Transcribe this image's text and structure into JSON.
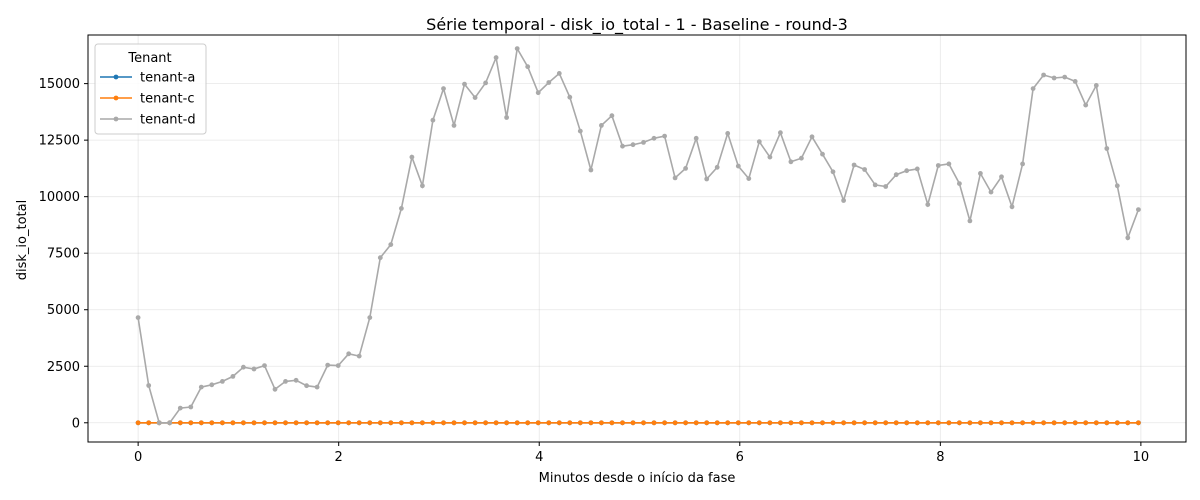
{
  "chart_data": {
    "type": "line",
    "title": "Série temporal - disk_io_total - 1 - Baseline - round-3",
    "xlabel": "Minutos desde o início da fase",
    "ylabel": "disk_io_total",
    "xlim": [
      -0.5,
      10.45
    ],
    "ylim": [
      -850,
      17150
    ],
    "xticks": [
      0,
      2,
      4,
      6,
      8,
      10
    ],
    "yticks": [
      0,
      2500,
      5000,
      7500,
      10000,
      12500,
      15000
    ],
    "grid": true,
    "legend": {
      "title": "Tenant",
      "position": "upper-left"
    },
    "x_step": 0.105,
    "series": [
      {
        "name": "tenant-a",
        "color": "#1f77b4",
        "values": [
          0,
          0,
          0,
          0,
          0,
          0,
          0,
          0,
          0,
          0,
          0,
          0,
          0,
          0,
          0,
          0,
          0,
          0,
          0,
          0,
          0,
          0,
          0,
          0,
          0,
          0,
          0,
          0,
          0,
          0,
          0,
          0,
          0,
          0,
          0,
          0,
          0,
          0,
          0,
          0,
          0,
          0,
          0,
          0,
          0,
          0,
          0,
          0,
          0,
          0,
          0,
          0,
          0,
          0,
          0,
          0,
          0,
          0,
          0,
          0,
          0,
          0,
          0,
          0,
          0,
          0,
          0,
          0,
          0,
          0,
          0,
          0,
          0,
          0,
          0,
          0,
          0,
          0,
          0,
          0,
          0,
          0,
          0,
          0,
          0,
          0,
          0,
          0,
          0,
          0,
          0,
          0,
          0,
          0,
          0,
          0
        ]
      },
      {
        "name": "tenant-c",
        "color": "#ff7f0e",
        "values": [
          0,
          0,
          0,
          0,
          0,
          0,
          0,
          0,
          0,
          0,
          0,
          0,
          0,
          0,
          0,
          0,
          0,
          0,
          0,
          0,
          0,
          0,
          0,
          0,
          0,
          0,
          0,
          0,
          0,
          0,
          0,
          0,
          0,
          0,
          0,
          0,
          0,
          0,
          0,
          0,
          0,
          0,
          0,
          0,
          0,
          0,
          0,
          0,
          0,
          0,
          0,
          0,
          0,
          0,
          0,
          0,
          0,
          0,
          0,
          0,
          0,
          0,
          0,
          0,
          0,
          0,
          0,
          0,
          0,
          0,
          0,
          0,
          0,
          0,
          0,
          0,
          0,
          0,
          0,
          0,
          0,
          0,
          0,
          0,
          0,
          0,
          0,
          0,
          0,
          0,
          0,
          0,
          0,
          0,
          0,
          0
        ]
      },
      {
        "name": "tenant-d",
        "color": "#a9a9a9",
        "values": [
          4650,
          1650,
          0,
          0,
          650,
          700,
          1580,
          1680,
          1830,
          2050,
          2460,
          2380,
          2530,
          1480,
          1830,
          1880,
          1640,
          1580,
          2550,
          2530,
          3050,
          2950,
          4650,
          7300,
          7880,
          9480,
          11750,
          10480,
          13380,
          14780,
          13150,
          14980,
          14380,
          15030,
          16150,
          13500,
          16550,
          15750,
          14600,
          15050,
          15450,
          14400,
          12900,
          11180,
          13150,
          13580,
          12230,
          12300,
          12400,
          12580,
          12680,
          10830,
          11250,
          12580,
          10780,
          11300,
          12800,
          11350,
          10800,
          12430,
          11750,
          12830,
          11540,
          11700,
          12650,
          11880,
          11100,
          9830,
          11400,
          11200,
          10520,
          10450,
          10970,
          11150,
          11230,
          9650,
          11380,
          11450,
          10580,
          8930,
          11030,
          10200,
          10880,
          9550,
          11450,
          14780,
          15380,
          15250,
          15290,
          15100,
          14050,
          14920,
          12130,
          10480,
          8180,
          9430
        ]
      }
    ]
  }
}
